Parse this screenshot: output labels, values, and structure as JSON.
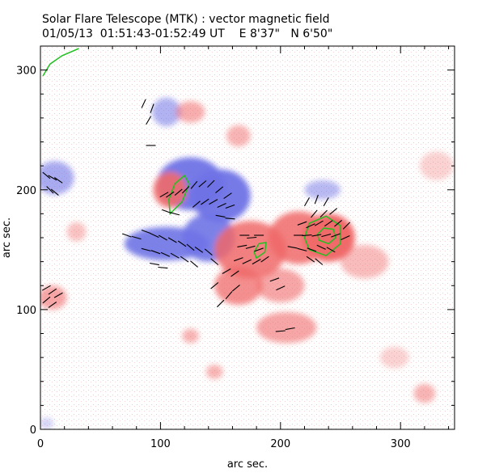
{
  "chart_data": {
    "type": "heatmap",
    "title": "Solar Flare Telescope (MTK) : vector magnetic field",
    "subtitle": {
      "date": "01/05/13",
      "time": "01:51:43-01:52:49 UT",
      "position": "E 8'37\"   N 6'50\""
    },
    "xlabel": "arc sec.",
    "ylabel": "arc sec.",
    "xlim": [
      0,
      345
    ],
    "ylim": [
      0,
      320
    ],
    "xticks": [
      0,
      100,
      200,
      300
    ],
    "yticks": [
      0,
      100,
      200,
      300
    ],
    "colors": {
      "positive": "#f06a6a",
      "negative": "#6f73e6",
      "contour": "#22c022",
      "vector": "#000000"
    },
    "regions": [
      {
        "polarity": "negative",
        "x": 105,
        "y": 265,
        "rx": 12,
        "ry": 12,
        "strength": 0.55
      },
      {
        "polarity": "negative",
        "x": 125,
        "y": 205,
        "rx": 28,
        "ry": 22,
        "strength": 0.95
      },
      {
        "polarity": "negative",
        "x": 150,
        "y": 195,
        "rx": 25,
        "ry": 22,
        "strength": 0.95
      },
      {
        "polarity": "negative",
        "x": 105,
        "y": 155,
        "rx": 35,
        "ry": 14,
        "strength": 0.9
      },
      {
        "polarity": "negative",
        "x": 140,
        "y": 160,
        "rx": 22,
        "ry": 20,
        "strength": 0.9
      },
      {
        "polarity": "negative",
        "x": 12,
        "y": 210,
        "rx": 16,
        "ry": 14,
        "strength": 0.6
      },
      {
        "polarity": "negative",
        "x": 235,
        "y": 200,
        "rx": 15,
        "ry": 8,
        "strength": 0.5
      },
      {
        "polarity": "negative",
        "x": 5,
        "y": 5,
        "rx": 6,
        "ry": 5,
        "strength": 0.3
      },
      {
        "polarity": "positive",
        "x": 125,
        "y": 265,
        "rx": 12,
        "ry": 9,
        "strength": 0.55
      },
      {
        "polarity": "positive",
        "x": 108,
        "y": 200,
        "rx": 14,
        "ry": 15,
        "strength": 0.9
      },
      {
        "polarity": "positive",
        "x": 165,
        "y": 245,
        "rx": 10,
        "ry": 9,
        "strength": 0.5
      },
      {
        "polarity": "positive",
        "x": 215,
        "y": 160,
        "rx": 25,
        "ry": 22,
        "strength": 0.85
      },
      {
        "polarity": "positive",
        "x": 240,
        "y": 160,
        "rx": 22,
        "ry": 20,
        "strength": 1.0
      },
      {
        "polarity": "positive",
        "x": 175,
        "y": 150,
        "rx": 30,
        "ry": 24,
        "strength": 0.85
      },
      {
        "polarity": "positive",
        "x": 165,
        "y": 120,
        "rx": 20,
        "ry": 16,
        "strength": 0.75
      },
      {
        "polarity": "positive",
        "x": 200,
        "y": 120,
        "rx": 20,
        "ry": 14,
        "strength": 0.6
      },
      {
        "polarity": "positive",
        "x": 205,
        "y": 85,
        "rx": 25,
        "ry": 13,
        "strength": 0.6
      },
      {
        "polarity": "positive",
        "x": 270,
        "y": 140,
        "rx": 20,
        "ry": 14,
        "strength": 0.45
      },
      {
        "polarity": "positive",
        "x": 10,
        "y": 110,
        "rx": 12,
        "ry": 10,
        "strength": 0.6
      },
      {
        "polarity": "positive",
        "x": 30,
        "y": 165,
        "rx": 8,
        "ry": 8,
        "strength": 0.4
      },
      {
        "polarity": "positive",
        "x": 125,
        "y": 78,
        "rx": 7,
        "ry": 6,
        "strength": 0.5
      },
      {
        "polarity": "positive",
        "x": 145,
        "y": 48,
        "rx": 7,
        "ry": 6,
        "strength": 0.5
      },
      {
        "polarity": "positive",
        "x": 320,
        "y": 30,
        "rx": 9,
        "ry": 8,
        "strength": 0.5
      },
      {
        "polarity": "positive",
        "x": 330,
        "y": 220,
        "rx": 14,
        "ry": 12,
        "strength": 0.3
      },
      {
        "polarity": "positive",
        "x": 295,
        "y": 60,
        "rx": 12,
        "ry": 9,
        "strength": 0.3
      }
    ],
    "contours": [
      {
        "label": "plage-edge",
        "points": [
          [
            2,
            295
          ],
          [
            8,
            305
          ],
          [
            18,
            312
          ],
          [
            32,
            318
          ]
        ]
      },
      {
        "label": "neg-core",
        "points": [
          [
            108,
            180
          ],
          [
            118,
            190
          ],
          [
            124,
            205
          ],
          [
            120,
            212
          ],
          [
            112,
            205
          ],
          [
            107,
            192
          ]
        ]
      },
      {
        "label": "pos-small",
        "points": [
          [
            180,
            143
          ],
          [
            187,
            148
          ],
          [
            188,
            156
          ],
          [
            182,
            155
          ],
          [
            178,
            148
          ]
        ]
      },
      {
        "label": "pos-ring-outer",
        "points": [
          [
            224,
            150
          ],
          [
            238,
            145
          ],
          [
            250,
            155
          ],
          [
            250,
            170
          ],
          [
            238,
            178
          ],
          [
            224,
            172
          ],
          [
            220,
            160
          ]
        ]
      },
      {
        "label": "pos-ring-inner",
        "points": [
          [
            232,
            158
          ],
          [
            240,
            155
          ],
          [
            246,
            160
          ],
          [
            244,
            167
          ],
          [
            236,
            168
          ],
          [
            231,
            163
          ]
        ]
      }
    ],
    "vectors": [
      {
        "x": 86,
        "y": 272,
        "angle": 65
      },
      {
        "x": 93,
        "y": 268,
        "angle": 70
      },
      {
        "x": 90,
        "y": 258,
        "angle": 60
      },
      {
        "x": 92,
        "y": 237,
        "angle": 0
      },
      {
        "x": 5,
        "y": 212,
        "angle": -40
      },
      {
        "x": 10,
        "y": 210,
        "angle": -30
      },
      {
        "x": 15,
        "y": 208,
        "angle": -35
      },
      {
        "x": 8,
        "y": 200,
        "angle": -45
      },
      {
        "x": 12,
        "y": 198,
        "angle": -40
      },
      {
        "x": 103,
        "y": 196,
        "angle": 30
      },
      {
        "x": 108,
        "y": 196,
        "angle": 35
      },
      {
        "x": 115,
        "y": 198,
        "angle": 40
      },
      {
        "x": 121,
        "y": 200,
        "angle": 45
      },
      {
        "x": 128,
        "y": 204,
        "angle": 50
      },
      {
        "x": 135,
        "y": 205,
        "angle": 40
      },
      {
        "x": 142,
        "y": 205,
        "angle": 45
      },
      {
        "x": 149,
        "y": 200,
        "angle": 40
      },
      {
        "x": 156,
        "y": 195,
        "angle": 35
      },
      {
        "x": 130,
        "y": 188,
        "angle": 40
      },
      {
        "x": 137,
        "y": 190,
        "angle": 35
      },
      {
        "x": 144,
        "y": 190,
        "angle": 30
      },
      {
        "x": 151,
        "y": 187,
        "angle": 25
      },
      {
        "x": 158,
        "y": 186,
        "angle": 20
      },
      {
        "x": 105,
        "y": 182,
        "angle": -20
      },
      {
        "x": 112,
        "y": 180,
        "angle": -15
      },
      {
        "x": 150,
        "y": 178,
        "angle": -10
      },
      {
        "x": 158,
        "y": 176,
        "angle": -5
      },
      {
        "x": 88,
        "y": 165,
        "angle": -20
      },
      {
        "x": 95,
        "y": 162,
        "angle": -25
      },
      {
        "x": 102,
        "y": 160,
        "angle": -30
      },
      {
        "x": 110,
        "y": 158,
        "angle": -30
      },
      {
        "x": 118,
        "y": 155,
        "angle": -35
      },
      {
        "x": 125,
        "y": 152,
        "angle": -40
      },
      {
        "x": 132,
        "y": 150,
        "angle": -35
      },
      {
        "x": 140,
        "y": 148,
        "angle": -40
      },
      {
        "x": 88,
        "y": 150,
        "angle": -15
      },
      {
        "x": 96,
        "y": 148,
        "angle": -20
      },
      {
        "x": 104,
        "y": 146,
        "angle": -25
      },
      {
        "x": 112,
        "y": 145,
        "angle": -30
      },
      {
        "x": 120,
        "y": 142,
        "angle": -35
      },
      {
        "x": 128,
        "y": 138,
        "angle": -40
      },
      {
        "x": 95,
        "y": 138,
        "angle": -10
      },
      {
        "x": 102,
        "y": 135,
        "angle": -5
      },
      {
        "x": 145,
        "y": 140,
        "angle": -40
      },
      {
        "x": 72,
        "y": 162,
        "angle": -20
      },
      {
        "x": 80,
        "y": 160,
        "angle": -15
      },
      {
        "x": 170,
        "y": 162,
        "angle": 0
      },
      {
        "x": 176,
        "y": 160,
        "angle": 5
      },
      {
        "x": 182,
        "y": 162,
        "angle": 0
      },
      {
        "x": 168,
        "y": 153,
        "angle": 10
      },
      {
        "x": 175,
        "y": 152,
        "angle": 15
      },
      {
        "x": 182,
        "y": 150,
        "angle": 20
      },
      {
        "x": 165,
        "y": 142,
        "angle": 20
      },
      {
        "x": 172,
        "y": 140,
        "angle": 25
      },
      {
        "x": 180,
        "y": 140,
        "angle": 30
      },
      {
        "x": 187,
        "y": 142,
        "angle": 35
      },
      {
        "x": 155,
        "y": 132,
        "angle": 30
      },
      {
        "x": 162,
        "y": 130,
        "angle": 35
      },
      {
        "x": 145,
        "y": 120,
        "angle": 40
      },
      {
        "x": 150,
        "y": 105,
        "angle": 45
      },
      {
        "x": 157,
        "y": 112,
        "angle": 50
      },
      {
        "x": 163,
        "y": 118,
        "angle": 40
      },
      {
        "x": 200,
        "y": 118,
        "angle": 25
      },
      {
        "x": 195,
        "y": 125,
        "angle": 20
      },
      {
        "x": 200,
        "y": 82,
        "angle": 5
      },
      {
        "x": 208,
        "y": 84,
        "angle": 10
      },
      {
        "x": 5,
        "y": 118,
        "angle": 30
      },
      {
        "x": 10,
        "y": 115,
        "angle": 35
      },
      {
        "x": 15,
        "y": 112,
        "angle": 30
      },
      {
        "x": 5,
        "y": 108,
        "angle": 40
      },
      {
        "x": 10,
        "y": 104,
        "angle": 35
      },
      {
        "x": 222,
        "y": 190,
        "angle": 60
      },
      {
        "x": 230,
        "y": 192,
        "angle": 70
      },
      {
        "x": 238,
        "y": 190,
        "angle": 60
      },
      {
        "x": 228,
        "y": 180,
        "angle": 50
      },
      {
        "x": 236,
        "y": 180,
        "angle": 45
      },
      {
        "x": 244,
        "y": 182,
        "angle": 40
      },
      {
        "x": 218,
        "y": 172,
        "angle": 20
      },
      {
        "x": 225,
        "y": 170,
        "angle": 25
      },
      {
        "x": 232,
        "y": 172,
        "angle": 30
      },
      {
        "x": 240,
        "y": 172,
        "angle": 35
      },
      {
        "x": 248,
        "y": 172,
        "angle": 40
      },
      {
        "x": 255,
        "y": 170,
        "angle": 45
      },
      {
        "x": 215,
        "y": 162,
        "angle": 0
      },
      {
        "x": 222,
        "y": 162,
        "angle": 5
      },
      {
        "x": 230,
        "y": 162,
        "angle": 10
      },
      {
        "x": 238,
        "y": 162,
        "angle": 15
      },
      {
        "x": 246,
        "y": 162,
        "angle": 20
      },
      {
        "x": 254,
        "y": 160,
        "angle": 25
      },
      {
        "x": 210,
        "y": 152,
        "angle": -10
      },
      {
        "x": 218,
        "y": 150,
        "angle": -15
      },
      {
        "x": 226,
        "y": 150,
        "angle": -20
      },
      {
        "x": 234,
        "y": 152,
        "angle": -25
      },
      {
        "x": 242,
        "y": 150,
        "angle": -30
      },
      {
        "x": 225,
        "y": 142,
        "angle": -35
      },
      {
        "x": 232,
        "y": 140,
        "angle": -40
      }
    ]
  }
}
